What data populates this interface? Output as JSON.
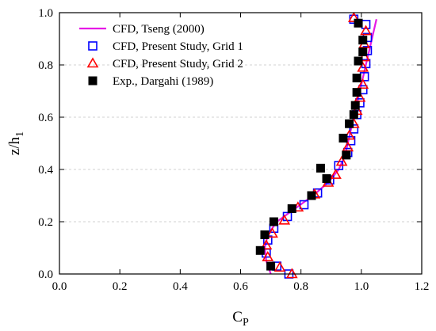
{
  "chart_data": {
    "type": "line",
    "xlabel": "C",
    "xlabel_sub": "P",
    "ylabel": "z/h",
    "ylabel_sub": "1",
    "xlim": [
      0.0,
      1.2
    ],
    "ylim": [
      0.0,
      1.0
    ],
    "x_ticks": [
      "0.0",
      "0.2",
      "0.4",
      "0.6",
      "0.8",
      "1.0",
      "1.2"
    ],
    "y_ticks": [
      "0.0",
      "0.2",
      "0.4",
      "0.6",
      "0.8",
      "1.0"
    ],
    "grid": "horizontal dashed",
    "legend_position": "top-left",
    "series": [
      {
        "name": "CFD, Tseng (2000)",
        "style": "line",
        "color": "#e619e6",
        "points": [
          [
            0.7,
            0.0
          ],
          [
            0.685,
            0.05
          ],
          [
            0.68,
            0.1
          ],
          [
            0.69,
            0.15
          ],
          [
            0.72,
            0.2
          ],
          [
            0.78,
            0.25
          ],
          [
            0.84,
            0.3
          ],
          [
            0.89,
            0.35
          ],
          [
            0.925,
            0.4
          ],
          [
            0.945,
            0.45
          ],
          [
            0.955,
            0.5
          ],
          [
            0.965,
            0.55
          ],
          [
            0.975,
            0.6
          ],
          [
            0.985,
            0.65
          ],
          [
            0.995,
            0.7
          ],
          [
            1.005,
            0.75
          ],
          [
            1.015,
            0.8
          ],
          [
            1.025,
            0.85
          ],
          [
            1.035,
            0.9
          ],
          [
            1.045,
            0.95
          ],
          [
            1.05,
            0.975
          ]
        ]
      },
      {
        "name": "CFD, Present Study, Grid 1",
        "style": "open-square",
        "color": "#0000ff",
        "points": [
          [
            0.76,
            0.0
          ],
          [
            0.72,
            0.03
          ],
          [
            0.685,
            0.08
          ],
          [
            0.69,
            0.13
          ],
          [
            0.71,
            0.175
          ],
          [
            0.755,
            0.22
          ],
          [
            0.81,
            0.265
          ],
          [
            0.855,
            0.31
          ],
          [
            0.895,
            0.36
          ],
          [
            0.925,
            0.415
          ],
          [
            0.955,
            0.465
          ],
          [
            0.965,
            0.51
          ],
          [
            0.975,
            0.555
          ],
          [
            0.985,
            0.61
          ],
          [
            0.995,
            0.655
          ],
          [
            1.005,
            0.705
          ],
          [
            1.01,
            0.755
          ],
          [
            1.015,
            0.805
          ],
          [
            1.02,
            0.855
          ],
          [
            1.02,
            0.905
          ],
          [
            1.015,
            0.955
          ],
          [
            0.975,
            0.975
          ]
        ]
      },
      {
        "name": "CFD, Present Study, Grid 2",
        "style": "open-triangle",
        "color": "#ff0000",
        "points": [
          [
            0.77,
            0.0
          ],
          [
            0.73,
            0.025
          ],
          [
            0.69,
            0.065
          ],
          [
            0.685,
            0.11
          ],
          [
            0.705,
            0.155
          ],
          [
            0.745,
            0.205
          ],
          [
            0.79,
            0.255
          ],
          [
            0.845,
            0.305
          ],
          [
            0.89,
            0.35
          ],
          [
            0.915,
            0.38
          ],
          [
            0.935,
            0.43
          ],
          [
            0.955,
            0.485
          ],
          [
            0.96,
            0.53
          ],
          [
            0.975,
            0.575
          ],
          [
            0.985,
            0.625
          ],
          [
            0.995,
            0.675
          ],
          [
            1.005,
            0.725
          ],
          [
            1.005,
            0.79
          ],
          [
            1.01,
            0.83
          ],
          [
            1.01,
            0.88
          ],
          [
            1.015,
            0.93
          ],
          [
            0.975,
            0.98
          ]
        ]
      },
      {
        "name": "Exp., Dargahi (1989)",
        "style": "filled-square",
        "color": "#000000",
        "points": [
          [
            0.7,
            0.03
          ],
          [
            0.665,
            0.09
          ],
          [
            0.68,
            0.15
          ],
          [
            0.71,
            0.2
          ],
          [
            0.77,
            0.25
          ],
          [
            0.835,
            0.3
          ],
          [
            0.885,
            0.365
          ],
          [
            0.865,
            0.405
          ],
          [
            0.95,
            0.455
          ],
          [
            0.94,
            0.52
          ],
          [
            0.96,
            0.575
          ],
          [
            0.975,
            0.61
          ],
          [
            0.98,
            0.645
          ],
          [
            0.985,
            0.695
          ],
          [
            0.985,
            0.75
          ],
          [
            0.99,
            0.815
          ],
          [
            1.005,
            0.85
          ],
          [
            1.005,
            0.895
          ],
          [
            0.99,
            0.96
          ]
        ]
      }
    ]
  }
}
